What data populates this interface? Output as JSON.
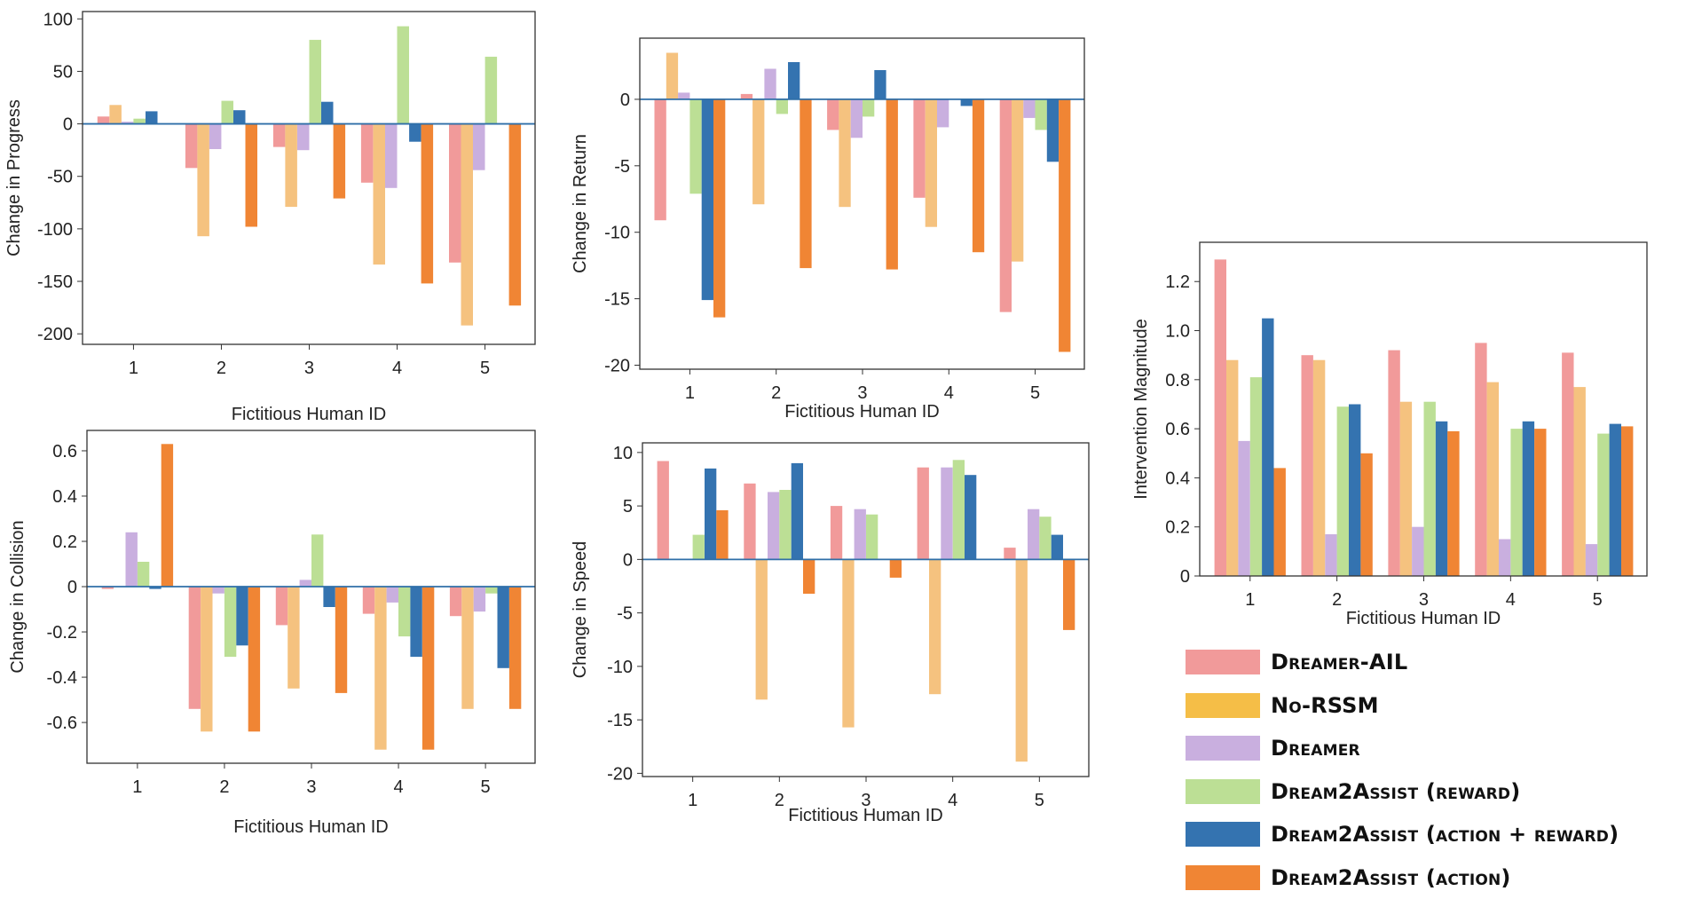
{
  "legend": {
    "items": [
      {
        "label": "Dreamer-AIL",
        "color": "#f19a9a"
      },
      {
        "label": "No-RSSM",
        "color": "#f5be47"
      },
      {
        "label": "Dreamer",
        "color": "#c9afdf"
      },
      {
        "label": "Dream2Assist (reward)",
        "color": "#bcdf95"
      },
      {
        "label": "Dream2Assist (action + reward)",
        "color": "#3473b0"
      },
      {
        "label": "Dream2Assist (action)",
        "color": "#f08534"
      }
    ]
  },
  "chart_data": [
    {
      "type": "bar",
      "title": "",
      "xlabel": "Fictitious Human ID",
      "ylabel": "Change in Progress",
      "categories": [
        "1",
        "2",
        "3",
        "4",
        "5"
      ],
      "ylim": [
        -210,
        107
      ],
      "yticks": [
        100,
        50,
        0,
        -50,
        -100,
        -150,
        -200
      ],
      "ytick_labels": [
        "100",
        "50",
        "0",
        "-50",
        "-100",
        "-150",
        "-200"
      ],
      "series": [
        {
          "colorKey": "#f19a9a",
          "values": [
            7,
            -42,
            -22,
            -56,
            -132
          ]
        },
        {
          "colorKey": "#f5c27f",
          "values": [
            18,
            -107,
            -79,
            -134,
            -192
          ]
        },
        {
          "colorKey": "#c9afdf",
          "values": [
            2,
            -24,
            -25,
            -61,
            -44
          ]
        },
        {
          "colorKey": "#bcdf95",
          "values": [
            5,
            22,
            80,
            93,
            64
          ]
        },
        {
          "colorKey": "#3473b0",
          "values": [
            12,
            13,
            21,
            -17,
            0
          ]
        },
        {
          "colorKey": "#f08534",
          "values": [
            0,
            -98,
            -71,
            -152,
            -173
          ]
        }
      ]
    },
    {
      "type": "bar",
      "title": "",
      "xlabel": "Fictitious Human ID",
      "ylabel": "Change in Return",
      "categories": [
        "1",
        "2",
        "3",
        "4",
        "5"
      ],
      "ylim": [
        -20.3,
        4.6
      ],
      "yticks": [
        0,
        -5,
        -10,
        -15,
        -20
      ],
      "ytick_labels": [
        "0",
        "-5",
        "-10",
        "-15",
        "-20"
      ],
      "series": [
        {
          "colorKey": "#f19a9a",
          "values": [
            -9.1,
            0.4,
            -2.3,
            -7.4,
            -16.0
          ]
        },
        {
          "colorKey": "#f5c27f",
          "values": [
            3.5,
            -7.9,
            -8.1,
            -9.6,
            -12.2
          ]
        },
        {
          "colorKey": "#c9afdf",
          "values": [
            0.5,
            2.3,
            -2.9,
            -2.1,
            -1.4
          ]
        },
        {
          "colorKey": "#bcdf95",
          "values": [
            -7.1,
            -1.1,
            -1.3,
            0,
            -2.3
          ]
        },
        {
          "colorKey": "#3473b0",
          "values": [
            -15.1,
            2.8,
            2.2,
            -0.5,
            -4.7
          ]
        },
        {
          "colorKey": "#f08534",
          "values": [
            -16.4,
            -12.7,
            -12.8,
            -11.5,
            -19.0
          ]
        }
      ]
    },
    {
      "type": "bar",
      "title": "",
      "xlabel": "Fictitious Human ID",
      "ylabel": "Change in Collision",
      "categories": [
        "1",
        "2",
        "3",
        "4",
        "5"
      ],
      "ylim": [
        -0.78,
        0.69
      ],
      "yticks": [
        0.6,
        0.4,
        0.2,
        0,
        -0.2,
        -0.4,
        -0.6
      ],
      "ytick_labels": [
        "0.6",
        "0.4",
        "0.2",
        "0",
        "-0.2",
        "-0.4",
        "-0.6"
      ],
      "series": [
        {
          "colorKey": "#f19a9a",
          "values": [
            -0.01,
            -0.54,
            -0.17,
            -0.12,
            -0.13
          ]
        },
        {
          "colorKey": "#f5c27f",
          "values": [
            0,
            -0.64,
            -0.45,
            -0.72,
            -0.54
          ]
        },
        {
          "colorKey": "#c9afdf",
          "values": [
            0.24,
            -0.03,
            0.03,
            -0.07,
            -0.11
          ]
        },
        {
          "colorKey": "#bcdf95",
          "values": [
            0.11,
            -0.31,
            0.23,
            -0.22,
            -0.03
          ]
        },
        {
          "colorKey": "#3473b0",
          "values": [
            -0.01,
            -0.26,
            -0.09,
            -0.31,
            -0.36
          ]
        },
        {
          "colorKey": "#f08534",
          "values": [
            0.63,
            -0.64,
            -0.47,
            -0.72,
            -0.54
          ]
        }
      ]
    },
    {
      "type": "bar",
      "title": "",
      "xlabel": "Fictitious Human ID",
      "ylabel": "Change in Speed",
      "categories": [
        "1",
        "2",
        "3",
        "4",
        "5"
      ],
      "ylim": [
        -20.3,
        10.9
      ],
      "yticks": [
        10,
        5,
        0,
        -5,
        -10,
        -15,
        -20
      ],
      "ytick_labels": [
        "10",
        "5",
        "0",
        "-5",
        "-10",
        "-15",
        "-20"
      ],
      "series": [
        {
          "colorKey": "#f19a9a",
          "values": [
            9.2,
            7.1,
            5.0,
            8.6,
            1.1
          ]
        },
        {
          "colorKey": "#f5c27f",
          "values": [
            0,
            -13.1,
            -15.7,
            -12.6,
            -18.9
          ]
        },
        {
          "colorKey": "#c9afdf",
          "values": [
            0,
            6.3,
            4.7,
            8.6,
            4.7
          ]
        },
        {
          "colorKey": "#bcdf95",
          "values": [
            2.3,
            6.5,
            4.2,
            9.3,
            4.0
          ]
        },
        {
          "colorKey": "#3473b0",
          "values": [
            8.5,
            9.0,
            0,
            7.9,
            2.3
          ]
        },
        {
          "colorKey": "#f08534",
          "values": [
            4.6,
            -3.2,
            -1.7,
            0,
            -6.6
          ]
        }
      ]
    },
    {
      "type": "bar",
      "title": "",
      "xlabel": "Fictitious Human ID",
      "ylabel": "Intervention Magnitude",
      "categories": [
        "1",
        "2",
        "3",
        "4",
        "5"
      ],
      "ylim": [
        0,
        1.36
      ],
      "yticks": [
        1.2,
        1.0,
        0.8,
        0.6,
        0.4,
        0.2,
        0
      ],
      "ytick_labels": [
        "1.2",
        "1.0",
        "0.8",
        "0.6",
        "0.4",
        "0.2",
        "0"
      ],
      "series": [
        {
          "colorKey": "#f19a9a",
          "values": [
            1.29,
            0.9,
            0.92,
            0.95,
            0.91
          ]
        },
        {
          "colorKey": "#f5c27f",
          "values": [
            0.88,
            0.88,
            0.71,
            0.79,
            0.77
          ]
        },
        {
          "colorKey": "#c9afdf",
          "values": [
            0.55,
            0.17,
            0.2,
            0.15,
            0.13
          ]
        },
        {
          "colorKey": "#bcdf95",
          "values": [
            0.81,
            0.69,
            0.71,
            0.6,
            0.58
          ]
        },
        {
          "colorKey": "#3473b0",
          "values": [
            1.05,
            0.7,
            0.63,
            0.63,
            0.62
          ]
        },
        {
          "colorKey": "#f08534",
          "values": [
            0.44,
            0.5,
            0.59,
            0.6,
            0.61
          ]
        }
      ]
    }
  ]
}
